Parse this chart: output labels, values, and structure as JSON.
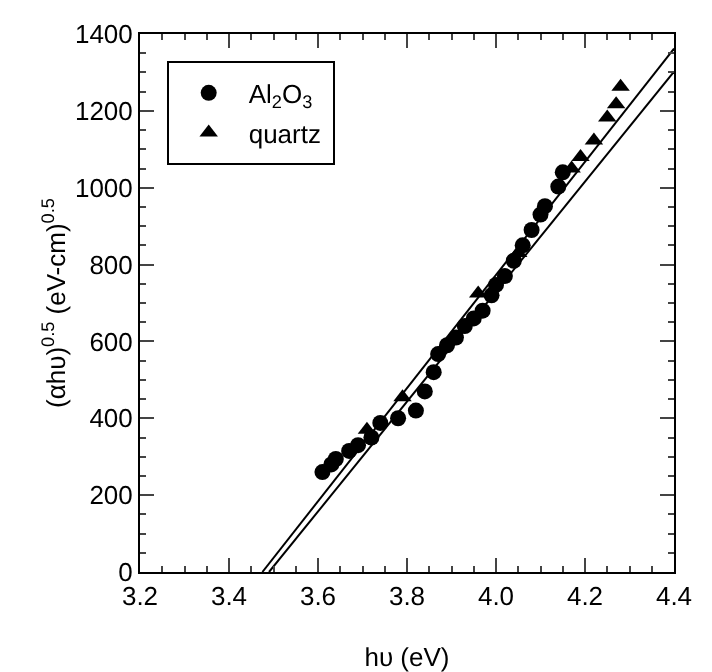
{
  "chart_data": {
    "type": "scatter",
    "xlabel": "hυ (eV)",
    "ylabel": "(αhυ)$^{0.5}$ (eV-cm)$^{0.5}$",
    "xlim": [
      3.2,
      4.4
    ],
    "ylim": [
      0,
      1400
    ],
    "xticks": [
      {
        "value": 3.2,
        "label": "3.2"
      },
      3.4,
      3.6,
      3.8,
      {
        "value": 4.0,
        "label": "4.0"
      },
      4.2,
      4.4
    ],
    "yticks": [
      0,
      200,
      400,
      600,
      800,
      1000,
      1200,
      1400
    ],
    "grid": false,
    "legend": "top left",
    "series": [
      {
        "name": "Al$_{2}$O$_{3}$",
        "color": "#000000",
        "marker": "circle",
        "x": [
          3.61,
          3.63,
          3.64,
          3.67,
          3.69,
          3.72,
          3.74,
          3.78,
          3.82,
          3.84,
          3.86,
          3.87,
          3.89,
          3.91,
          3.93,
          3.95,
          3.97,
          3.99,
          4.0,
          4.02,
          4.04,
          4.06,
          4.08,
          4.1,
          4.11,
          4.14,
          4.15
        ],
        "values": [
          260,
          280,
          294,
          315,
          330,
          350,
          388,
          400,
          420,
          470,
          520,
          567,
          590,
          610,
          640,
          660,
          680,
          720,
          747,
          770,
          810,
          850,
          890,
          930,
          952,
          1003,
          1040
        ]
      },
      {
        "name": "quartz",
        "color": "#000000",
        "marker": "triangle",
        "x": [
          3.71,
          3.79,
          3.96,
          4.05,
          4.17,
          4.19,
          4.22,
          4.25,
          4.27,
          4.28
        ],
        "values": [
          370,
          455,
          725,
          830,
          1050,
          1080,
          1123,
          1183,
          1217,
          1263
        ]
      },
      {
        "type": "line",
        "color": "#000000",
        "marker": "none",
        "x": [
          3.475,
          4.4
        ],
        "values": [
          0,
          1362
        ]
      },
      {
        "type": "line",
        "color": "#000000",
        "marker": "none",
        "x": [
          3.49,
          4.4
        ],
        "values": [
          0,
          1302
        ]
      }
    ]
  }
}
